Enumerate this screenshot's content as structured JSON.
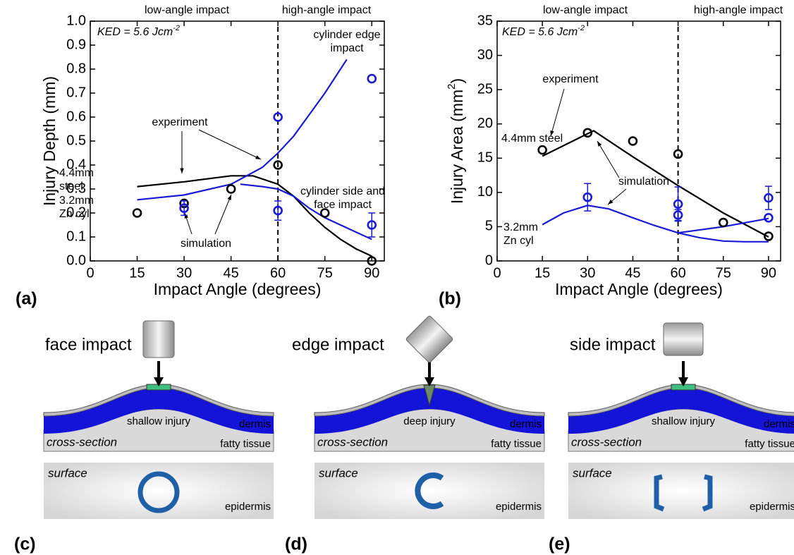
{
  "chart_data": [
    {
      "type": "scatter",
      "panel_label": "(a)",
      "x_label": "Impact Angle (degrees)",
      "y_label": [
        "Injury Depth (mm)"
      ],
      "xlim": [
        0,
        94
      ],
      "xticks": [
        0,
        15,
        30,
        45,
        60,
        75,
        90
      ],
      "ylim": [
        0,
        1
      ],
      "yticks": [
        {
          "value": 0,
          "label": "0.0"
        },
        0.1,
        0.2,
        0.3,
        0.4,
        0.5,
        0.6,
        0.7,
        0.8,
        0.9,
        {
          "value": 1,
          "label": "1.0"
        }
      ],
      "divider_x": 60,
      "annotations": [
        {
          "lines": [
            "low-angle impact"
          ],
          "color": "#000"
        },
        {
          "lines": [
            "high-angle impact"
          ],
          "color": "#000"
        },
        {
          "lines": [
            "KED = 5.6 Jcm"
          ],
          "sup": "-2",
          "color": "#000",
          "italic": true
        },
        {
          "lines": [
            "cylinder edge",
            "impact"
          ],
          "color": "#1a1ad6"
        },
        {
          "lines": [
            "experiment"
          ],
          "color": "#000"
        },
        {
          "lines": [
            "4.4mm",
            "steel"
          ],
          "color": "#000"
        },
        {
          "lines": [
            "3.2mm",
            "Zn cyl"
          ],
          "color": "#1a1ad6"
        },
        {
          "lines": [
            "cylinder side and",
            "face impact"
          ],
          "color": "#1a1ad6"
        },
        {
          "lines": [
            "simulation"
          ],
          "color": "#000"
        }
      ],
      "series": [
        {
          "mode": "line",
          "color": "#000000",
          "x": [
            15,
            30,
            45,
            52,
            60,
            65,
            70,
            75,
            80,
            85,
            90
          ],
          "values": [
            0.31,
            0.33,
            0.355,
            0.355,
            0.32,
            0.27,
            0.2,
            0.14,
            0.09,
            0.05,
            0.02
          ]
        },
        {
          "mode": "line",
          "color": "#1a1ad6",
          "x": [
            15,
            30,
            45,
            55,
            60,
            65,
            70,
            75,
            82
          ],
          "values": [
            0.255,
            0.275,
            0.32,
            0.39,
            0.45,
            0.52,
            0.61,
            0.7,
            0.84
          ]
        },
        {
          "mode": "line",
          "color": "#1a1ad6",
          "x": [
            48,
            55,
            60,
            65,
            70,
            75,
            80,
            85,
            90
          ],
          "values": [
            0.32,
            0.31,
            0.3,
            0.27,
            0.22,
            0.18,
            0.15,
            0.12,
            0.09
          ]
        },
        {
          "mode": "markers",
          "color": "#000000",
          "x": [
            15,
            30,
            45,
            60,
            75,
            90
          ],
          "values": [
            0.2,
            0.24,
            0.3,
            0.4,
            0.2,
            0.0
          ]
        },
        {
          "mode": "markers",
          "color": "#1a1ad6",
          "x": [
            30,
            60,
            60,
            90,
            90
          ],
          "values": [
            0.22,
            0.6,
            0.21,
            0.76,
            0.15
          ],
          "errors": [
            0.03,
            null,
            0.04,
            null,
            0.05
          ]
        }
      ]
    },
    {
      "type": "scatter",
      "panel_label": "(b)",
      "x_label": "Impact Angle (degrees)",
      "y_label": [
        "Injury Area (mm",
        "2",
        ")"
      ],
      "xlim": [
        0,
        94
      ],
      "xticks": [
        0,
        15,
        30,
        45,
        60,
        75,
        90
      ],
      "ylim": [
        0,
        35
      ],
      "yticks": [
        0,
        5,
        10,
        15,
        20,
        25,
        30,
        35
      ],
      "divider_x": 60,
      "annotations": [
        {
          "lines": [
            "low-angle impact"
          ],
          "color": "#000"
        },
        {
          "lines": [
            "high-angle impact"
          ],
          "color": "#000"
        },
        {
          "lines": [
            "KED = 5.6 Jcm"
          ],
          "sup": "-2",
          "color": "#000",
          "italic": true
        },
        {
          "lines": [
            "experiment"
          ],
          "color": "#000"
        },
        {
          "lines": [
            "4.4mm steel"
          ],
          "color": "#000"
        },
        {
          "lines": [
            "simulation"
          ],
          "color": "#000"
        },
        {
          "lines": [
            "3.2mm",
            "Zn cyl"
          ],
          "color": "#1a1ad6"
        }
      ],
      "series": [
        {
          "mode": "line",
          "color": "#000000",
          "x": [
            15,
            32,
            45,
            60,
            75,
            90
          ],
          "values": [
            15.3,
            19.0,
            15.2,
            11.0,
            7.0,
            3.5
          ]
        },
        {
          "mode": "line",
          "color": "#1a1ad6",
          "x": [
            15,
            22,
            30,
            37,
            45,
            52,
            60,
            67,
            75,
            82,
            90
          ],
          "values": [
            5.3,
            7.0,
            8.1,
            7.6,
            6.3,
            5.2,
            4.1,
            3.4,
            2.9,
            2.8,
            2.8
          ]
        },
        {
          "mode": "line",
          "color": "#1a1ad6",
          "x": [
            60,
            75,
            90
          ],
          "values": [
            4.1,
            5.0,
            6.2
          ]
        },
        {
          "mode": "markers",
          "color": "#000000",
          "x": [
            15,
            30,
            45,
            60,
            75,
            90
          ],
          "values": [
            16.2,
            18.7,
            17.5,
            15.6,
            5.6,
            3.6
          ]
        },
        {
          "mode": "markers",
          "color": "#1a1ad6",
          "x": [
            30,
            60,
            60,
            90,
            90
          ],
          "values": [
            9.3,
            8.3,
            6.7,
            9.2,
            6.3
          ],
          "errors": [
            2.0,
            2.5,
            0.8,
            1.7,
            null
          ]
        }
      ]
    }
  ],
  "panels": [
    {
      "label": "(c)",
      "title": "face impact",
      "injury": "shallow injury",
      "dermis": "dermis",
      "section": "cross-section",
      "fat": "fatty tissue",
      "surface": "surface",
      "epidermis": "epidermis"
    },
    {
      "label": "(d)",
      "title": "edge impact",
      "injury": "deep injury",
      "dermis": "dermis",
      "section": "cross-section",
      "fat": "fatty tissue",
      "surface": "surface",
      "epidermis": "epidermis"
    },
    {
      "label": "(e)",
      "title": "side impact",
      "injury": "shallow injury",
      "dermis": "dermis",
      "section": "cross-section",
      "fat": "fatty tissue",
      "surface": "surface",
      "epidermis": "epidermis"
    }
  ]
}
